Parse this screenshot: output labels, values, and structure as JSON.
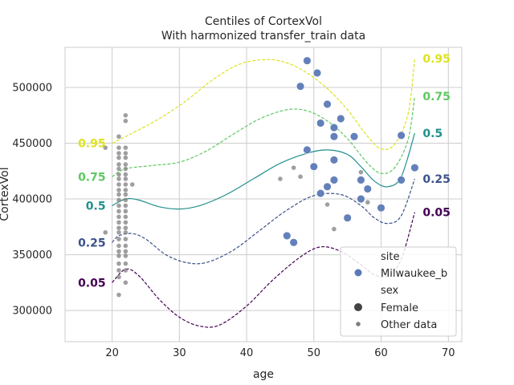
{
  "chart_data": {
    "type": "scatter",
    "title": "Centiles of CortexVol",
    "subtitle": "With harmonized transfer_train data",
    "xlabel": "age",
    "ylabel": "CortexVol",
    "xlim": [
      13,
      72
    ],
    "ylim": [
      272000,
      536000
    ],
    "xticks": [
      20,
      30,
      40,
      50,
      60,
      70
    ],
    "yticks": [
      300000,
      350000,
      400000,
      450000,
      500000
    ],
    "grid": true,
    "legend": {
      "placement": "bottom-right",
      "title_site": "site",
      "site_label": "Milwaukee_b",
      "title_sex": "sex",
      "female_label": "Female",
      "other_label": "Other data"
    },
    "colors": {
      "site_points": "#5b79b6",
      "other_points": "#7f7f7f",
      "c005": "#440154",
      "c025": "#3b528b",
      "c050": "#21918c",
      "c075": "#5ec962",
      "c095": "#dde31c"
    },
    "centiles": [
      {
        "label": "0.05",
        "color_key": "c005",
        "dashed": true,
        "points": [
          [
            20,
            325000
          ],
          [
            22,
            337000
          ],
          [
            24,
            331000
          ],
          [
            27,
            310000
          ],
          [
            30,
            294000
          ],
          [
            33,
            286000
          ],
          [
            36,
            287000
          ],
          [
            40,
            304000
          ],
          [
            44,
            328000
          ],
          [
            48,
            348000
          ],
          [
            51,
            357000
          ],
          [
            54,
            353000
          ],
          [
            57,
            341000
          ],
          [
            59,
            332000
          ],
          [
            61,
            331000
          ],
          [
            63,
            346000
          ],
          [
            65,
            388000
          ]
        ]
      },
      {
        "label": "0.25",
        "color_key": "c025",
        "dashed": true,
        "points": [
          [
            20,
            361000
          ],
          [
            21,
            367000
          ],
          [
            23,
            369000
          ],
          [
            25,
            364000
          ],
          [
            28,
            350000
          ],
          [
            31,
            343000
          ],
          [
            34,
            343000
          ],
          [
            38,
            354000
          ],
          [
            42,
            372000
          ],
          [
            46,
            390000
          ],
          [
            50,
            403000
          ],
          [
            54,
            404000
          ],
          [
            57,
            394000
          ],
          [
            59,
            383000
          ],
          [
            61,
            378000
          ],
          [
            63,
            385000
          ],
          [
            65,
            418000
          ]
        ]
      },
      {
        "label": "0.5",
        "color_key": "c050",
        "dashed": false,
        "points": [
          [
            20,
            394000
          ],
          [
            22,
            400000
          ],
          [
            24,
            399000
          ],
          [
            27,
            393000
          ],
          [
            30,
            391000
          ],
          [
            33,
            394000
          ],
          [
            37,
            404000
          ],
          [
            41,
            418000
          ],
          [
            45,
            432000
          ],
          [
            49,
            441000
          ],
          [
            52,
            444000
          ],
          [
            55,
            440000
          ],
          [
            57,
            429000
          ],
          [
            59,
            416000
          ],
          [
            61,
            411000
          ],
          [
            63,
            420000
          ],
          [
            65,
            459000
          ]
        ]
      },
      {
        "label": "0.75",
        "color_key": "c075",
        "dashed": true,
        "points": [
          [
            20,
            420000
          ],
          [
            22,
            427000
          ],
          [
            26,
            430000
          ],
          [
            30,
            433000
          ],
          [
            34,
            443000
          ],
          [
            38,
            458000
          ],
          [
            42,
            472000
          ],
          [
            46,
            480000
          ],
          [
            49,
            479000
          ],
          [
            52,
            470000
          ],
          [
            55,
            454000
          ],
          [
            58,
            432000
          ],
          [
            60,
            423000
          ],
          [
            62,
            428000
          ],
          [
            64,
            453000
          ],
          [
            65,
            492000
          ]
        ]
      },
      {
        "label": "0.95",
        "color_key": "c095",
        "dashed": true,
        "points": [
          [
            20,
            450000
          ],
          [
            23,
            459000
          ],
          [
            27,
            472000
          ],
          [
            31,
            488000
          ],
          [
            35,
            507000
          ],
          [
            39,
            521000
          ],
          [
            43,
            525000
          ],
          [
            46,
            522000
          ],
          [
            49,
            513000
          ],
          [
            52,
            499000
          ],
          [
            55,
            480000
          ],
          [
            58,
            456000
          ],
          [
            60,
            445000
          ],
          [
            62,
            449000
          ],
          [
            64,
            476000
          ],
          [
            65,
            526000
          ]
        ]
      }
    ],
    "site_points": [
      [
        49,
        524000
      ],
      [
        48,
        501000
      ],
      [
        50.5,
        513000
      ],
      [
        52,
        485000
      ],
      [
        53,
        464000
      ],
      [
        54,
        472000
      ],
      [
        51,
        468000
      ],
      [
        53,
        456000
      ],
      [
        56,
        456000
      ],
      [
        49,
        444000
      ],
      [
        53,
        435000
      ],
      [
        50,
        429000
      ],
      [
        57,
        417000
      ],
      [
        58,
        409000
      ],
      [
        53,
        417000
      ],
      [
        52,
        411000
      ],
      [
        51,
        405000
      ],
      [
        57,
        400000
      ],
      [
        60,
        392000
      ],
      [
        55,
        383000
      ],
      [
        46,
        367000
      ],
      [
        47,
        361000
      ],
      [
        63,
        457000
      ],
      [
        65,
        428000
      ],
      [
        63,
        417000
      ]
    ],
    "other_points": [
      [
        21,
        456000
      ],
      [
        22,
        475000
      ],
      [
        22,
        470000
      ],
      [
        21,
        446000
      ],
      [
        22,
        446000
      ],
      [
        19,
        446000
      ],
      [
        21,
        441000
      ],
      [
        22,
        441000
      ],
      [
        21,
        437000
      ],
      [
        22,
        437000
      ],
      [
        21,
        431000
      ],
      [
        22,
        431000
      ],
      [
        21,
        427000
      ],
      [
        22,
        427000
      ],
      [
        21,
        422000
      ],
      [
        22,
        422000
      ],
      [
        21,
        418000
      ],
      [
        22,
        418000
      ],
      [
        21,
        413000
      ],
      [
        22,
        413000
      ],
      [
        23,
        413000
      ],
      [
        21,
        408000
      ],
      [
        22,
        408000
      ],
      [
        21,
        404000
      ],
      [
        22,
        404000
      ],
      [
        21,
        399000
      ],
      [
        22,
        399000
      ],
      [
        21,
        394000
      ],
      [
        22,
        394000
      ],
      [
        21,
        389000
      ],
      [
        22,
        389000
      ],
      [
        21,
        384000
      ],
      [
        22,
        384000
      ],
      [
        21,
        379000
      ],
      [
        22,
        379000
      ],
      [
        21,
        374000
      ],
      [
        22,
        374000
      ],
      [
        21,
        370000
      ],
      [
        22,
        370000
      ],
      [
        19,
        370000
      ],
      [
        21,
        364000
      ],
      [
        22,
        364000
      ],
      [
        21,
        358000
      ],
      [
        22,
        358000
      ],
      [
        21,
        353000
      ],
      [
        22,
        353000
      ],
      [
        21,
        349000
      ],
      [
        22,
        349000
      ],
      [
        21,
        342000
      ],
      [
        22,
        342000
      ],
      [
        21,
        336000
      ],
      [
        22,
        336000
      ],
      [
        21,
        330000
      ],
      [
        22,
        325000
      ],
      [
        21,
        314000
      ],
      [
        47,
        428000
      ],
      [
        45,
        418000
      ],
      [
        48,
        420000
      ],
      [
        52,
        395000
      ],
      [
        57,
        424000
      ],
      [
        58,
        397000
      ],
      [
        53,
        373000
      ]
    ]
  }
}
